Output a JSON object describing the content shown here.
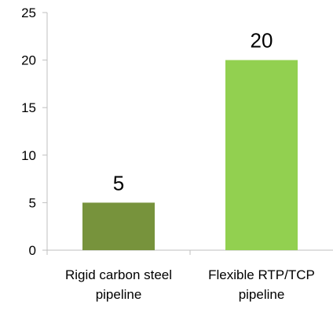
{
  "chart_data": {
    "type": "bar",
    "categories": [
      "Rigid carbon steel pipeline",
      "Flexible RTP/TCP pipeline"
    ],
    "category_lines": [
      [
        "Rigid carbon steel",
        "pipeline"
      ],
      [
        "Flexible RTP/TCP",
        "pipeline"
      ]
    ],
    "values": [
      5,
      20
    ],
    "data_labels": [
      "5",
      "20"
    ],
    "bar_colors": [
      "#77933C",
      "#92D050"
    ],
    "title": "",
    "xlabel": "",
    "ylabel": "",
    "ylim": [
      0,
      25
    ],
    "yticks": [
      0,
      5,
      10,
      15,
      20,
      25
    ],
    "grid": false,
    "legend": "none"
  }
}
